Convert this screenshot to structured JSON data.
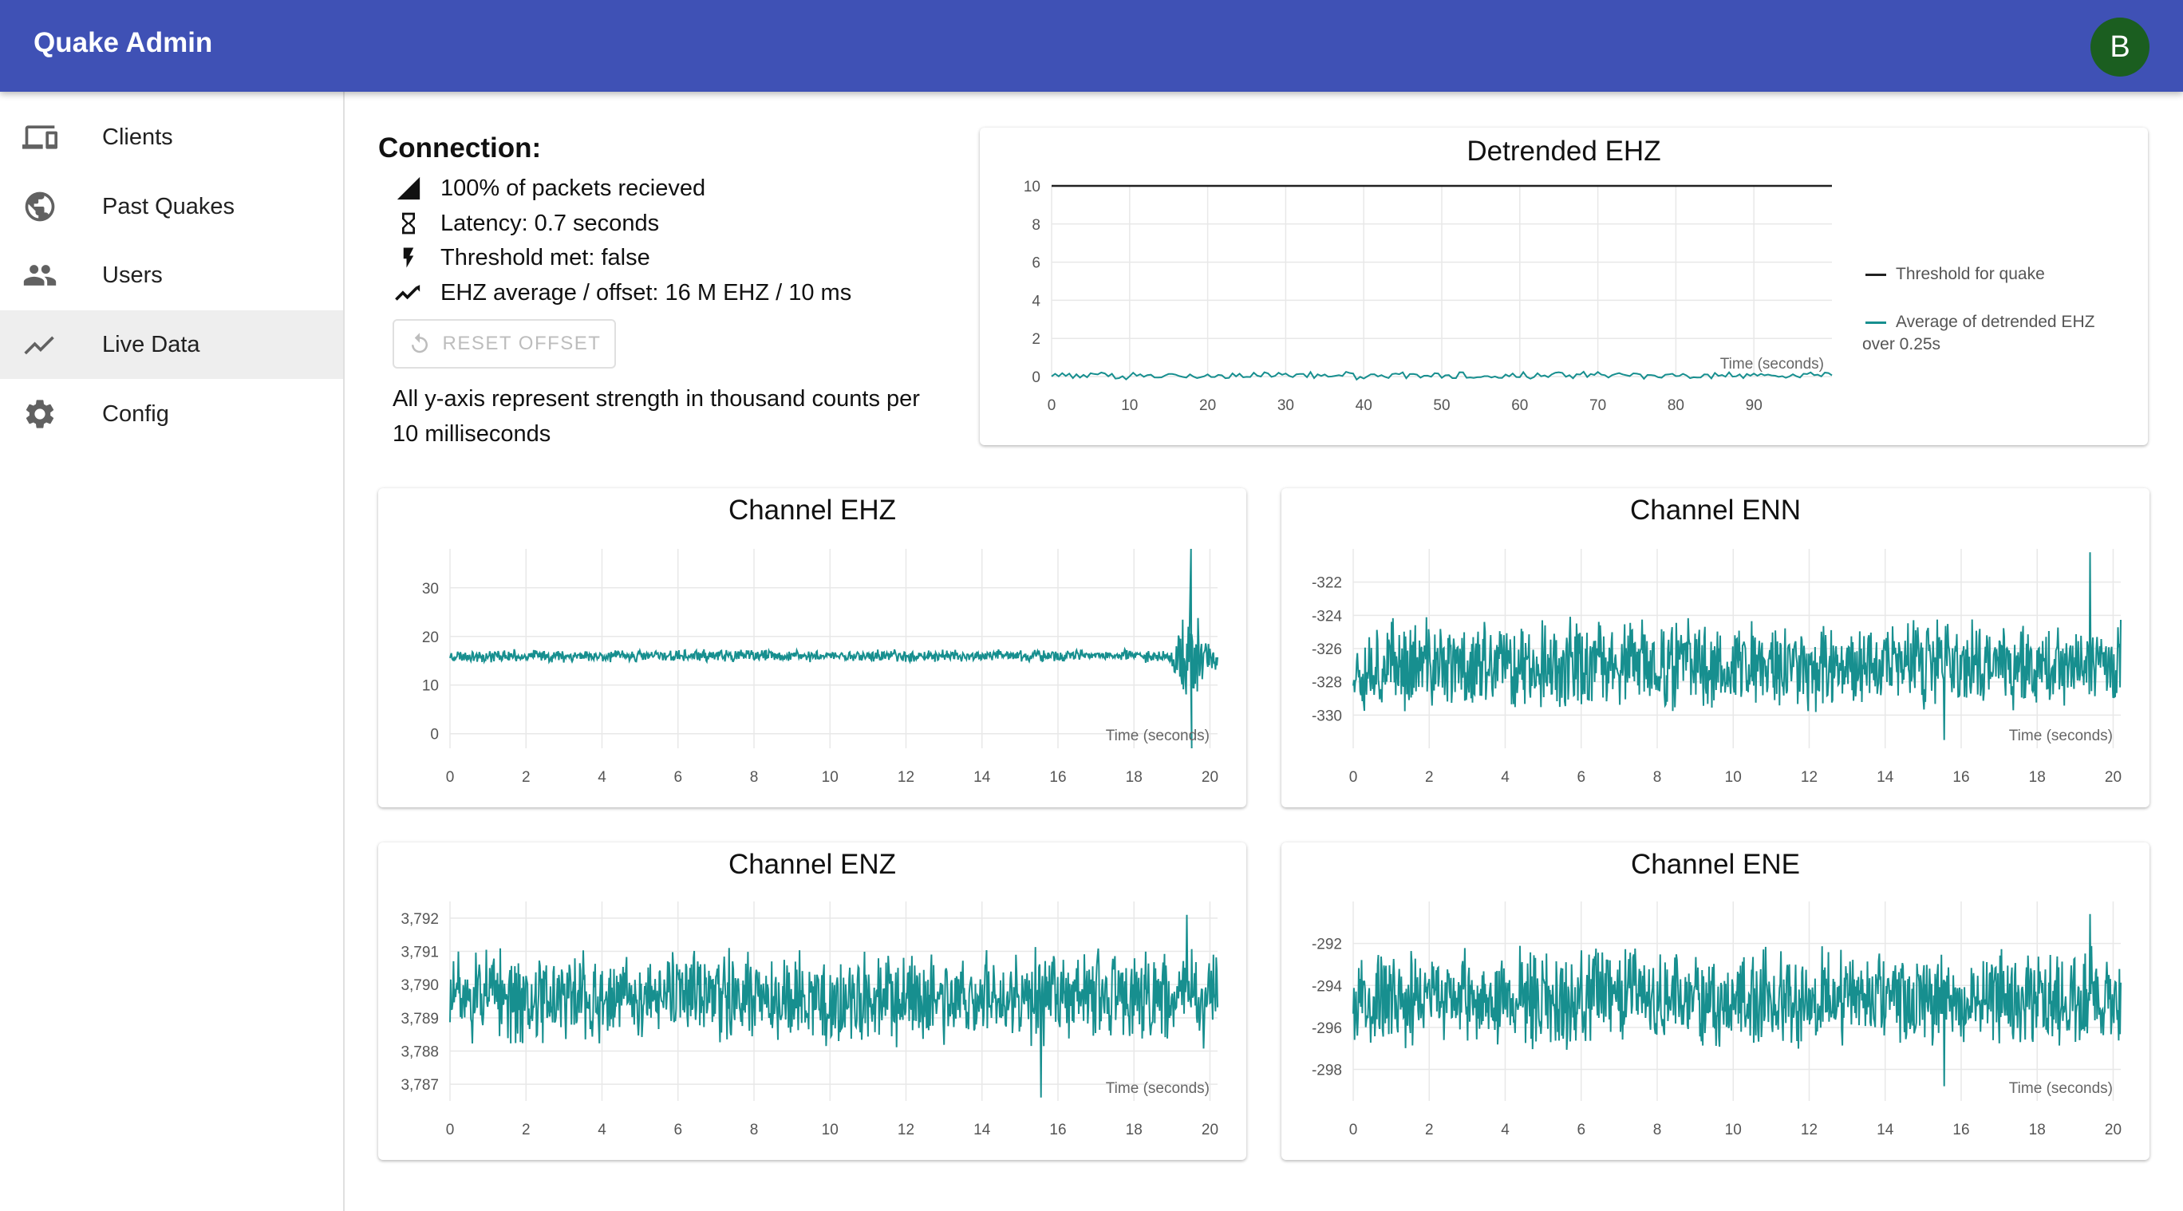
{
  "app": {
    "title": "Quake Admin",
    "avatar_letter": "B"
  },
  "sidebar": {
    "items": [
      {
        "label": "Clients",
        "icon": "devices-icon"
      },
      {
        "label": "Past Quakes",
        "icon": "globe-icon"
      },
      {
        "label": "Users",
        "icon": "people-icon"
      },
      {
        "label": "Live Data",
        "icon": "trending-line-icon",
        "active": true
      },
      {
        "label": "Config",
        "icon": "gear-icon"
      }
    ]
  },
  "connection": {
    "title": "Connection:",
    "packets": "100% of packets recieved",
    "latency": "Latency: 0.7 seconds",
    "threshold": "Threshold met: false",
    "average": "EHZ average / offset: 16 M EHZ / 10 ms",
    "reset_label": "RESET OFFSET",
    "note": "All y-axis represent strength in thousand counts per 10 milliseconds"
  },
  "colors": {
    "appbar": "#3f51b5",
    "avatar": "#1b5e20",
    "series": "#178f8f",
    "threshold": "#212121"
  },
  "chart_data": [
    {
      "id": "detrended",
      "type": "line",
      "title": "Detrended EHZ",
      "xlabel": "Time (seconds)",
      "xlim": [
        0,
        100
      ],
      "ylim": [
        0,
        10
      ],
      "xticks": [
        "0",
        "10",
        "20",
        "30",
        "40",
        "50",
        "60",
        "70",
        "80",
        "90"
      ],
      "yticks": [
        "0",
        "2",
        "4",
        "6",
        "8",
        "10"
      ],
      "grid": true,
      "legend_position": "right",
      "series": [
        {
          "name": "Threshold for quake",
          "color": "#212121",
          "constant": 10
        },
        {
          "name": "Average of detrended EHZ over 0.25s",
          "color": "#178f8f",
          "baseline": 0.05,
          "amplitude": 0.15
        }
      ]
    },
    {
      "id": "ehz",
      "type": "line",
      "title": "Channel EHZ",
      "xlabel": "Time (seconds)",
      "xlim": [
        0,
        20.2
      ],
      "ylim": [
        -3,
        38
      ],
      "xticks": [
        "0",
        "2",
        "4",
        "6",
        "8",
        "10",
        "12",
        "14",
        "16",
        "18",
        "20"
      ],
      "yticks": [
        "0",
        "10",
        "20",
        "30"
      ],
      "grid": true,
      "series": [
        {
          "color": "#178f8f",
          "baseline": 16,
          "amplitude": 1.0,
          "spike_at": 19.5,
          "spike_max": 38,
          "spike_min": -3
        }
      ]
    },
    {
      "id": "enn",
      "type": "line",
      "title": "Channel ENN",
      "xlabel": "Time (seconds)",
      "xlim": [
        0,
        20.2
      ],
      "ylim": [
        -332,
        -320
      ],
      "xticks": [
        "0",
        "2",
        "4",
        "6",
        "8",
        "10",
        "12",
        "14",
        "16",
        "18",
        "20"
      ],
      "yticks": [
        "-322",
        "-324",
        "-326",
        "-328",
        "-330"
      ],
      "grid": true,
      "series": [
        {
          "color": "#178f8f",
          "baseline": -327,
          "amplitude": 2.2,
          "peak": -320.2,
          "trough": -331.5
        }
      ]
    },
    {
      "id": "enz",
      "type": "line",
      "title": "Channel ENZ",
      "xlabel": "Time (seconds)",
      "xlim": [
        0,
        20.2
      ],
      "ylim": [
        3786.5,
        3792.5
      ],
      "xticks": [
        "0",
        "2",
        "4",
        "6",
        "8",
        "10",
        "12",
        "14",
        "16",
        "18",
        "20"
      ],
      "yticks": [
        "3,792",
        "3,791",
        "3,790",
        "3,789",
        "3,788",
        "3,787"
      ],
      "grid": true,
      "series": [
        {
          "color": "#178f8f",
          "baseline": 3789.6,
          "amplitude": 1.1,
          "peak": 3792.1,
          "trough": 3786.6
        }
      ]
    },
    {
      "id": "ene",
      "type": "line",
      "title": "Channel ENE",
      "xlabel": "Time (seconds)",
      "xlim": [
        0,
        20.2
      ],
      "ylim": [
        -299.5,
        -290
      ],
      "xticks": [
        "0",
        "2",
        "4",
        "6",
        "8",
        "10",
        "12",
        "14",
        "16",
        "18",
        "20"
      ],
      "yticks": [
        "-292",
        "-294",
        "-296",
        "-298"
      ],
      "grid": true,
      "series": [
        {
          "color": "#178f8f",
          "baseline": -294.6,
          "amplitude": 1.8,
          "peak": -290.6,
          "trough": -298.8
        }
      ]
    }
  ]
}
